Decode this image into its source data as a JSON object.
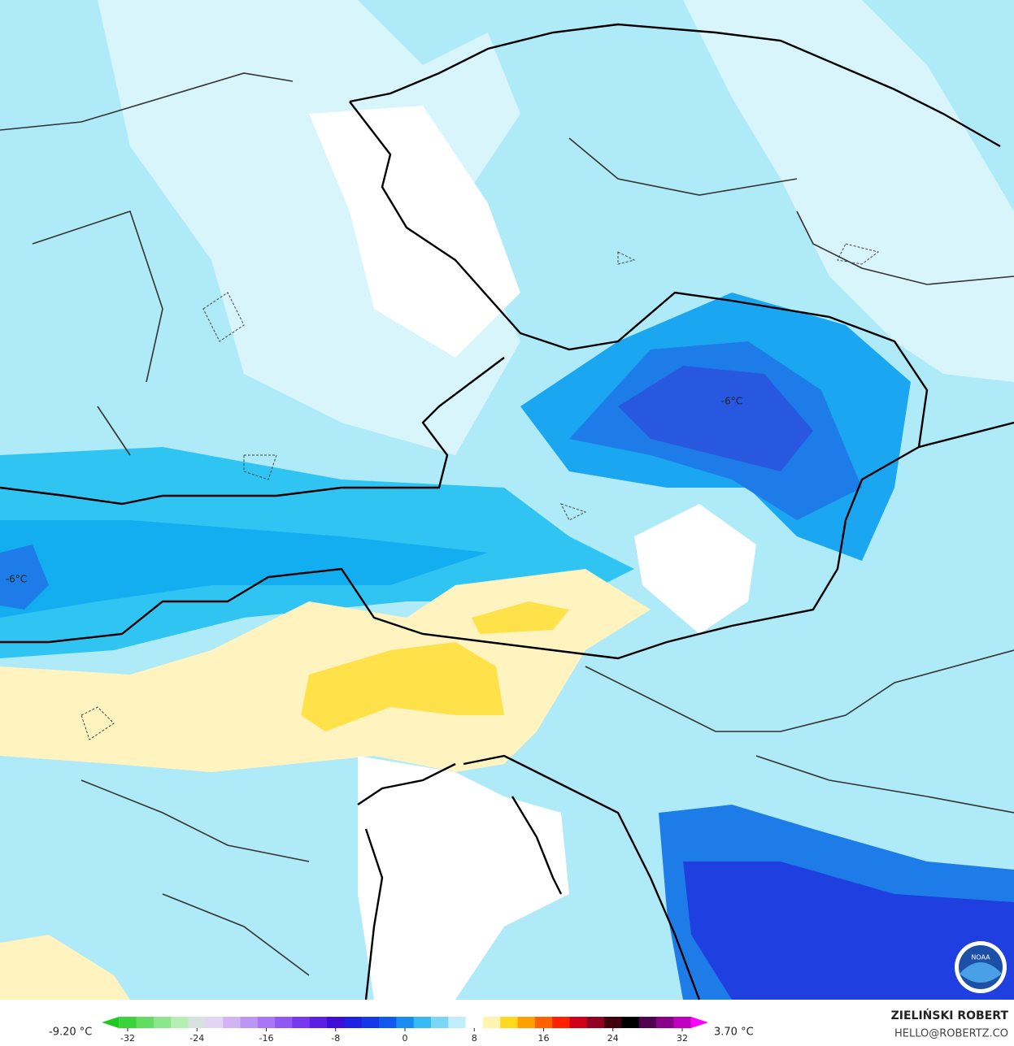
{
  "map": {
    "labels": [
      {
        "text": "-6°C"
      },
      {
        "text": "-6°C"
      }
    ],
    "logo": "NOAA",
    "colorbar": {
      "min_label": "-9.20 °C",
      "max_label": "3.70 °C",
      "lim": [
        -35,
        35
      ],
      "ticks": [
        -32,
        -24,
        -16,
        -8,
        0,
        8,
        16,
        24,
        32
      ],
      "colors": [
        "#1ec81e",
        "#3cd23c",
        "#64dc64",
        "#8ce68c",
        "#b4f0b4",
        "#d8e0e0",
        "#e4d4f4",
        "#d0b4f4",
        "#bc96f4",
        "#a878f4",
        "#9058f0",
        "#7838ec",
        "#5a1ee4",
        "#3c0ed8",
        "#2020e0",
        "#1438e8",
        "#1058ee",
        "#1a8cf0",
        "#38b8f4",
        "#7ad8f6",
        "#c0eefa",
        "#ffffff",
        "#fff4b0",
        "#ffd820",
        "#ffa000",
        "#ff6000",
        "#ff2000",
        "#d00018",
        "#900020",
        "#400010",
        "#000000",
        "#500050",
        "#8a008a",
        "#c000c0",
        "#ff00ff"
      ]
    },
    "credit": {
      "name": "ZIELIŃSKI ROBERT",
      "email": "HELLO@ROBERTZ.CO"
    }
  }
}
